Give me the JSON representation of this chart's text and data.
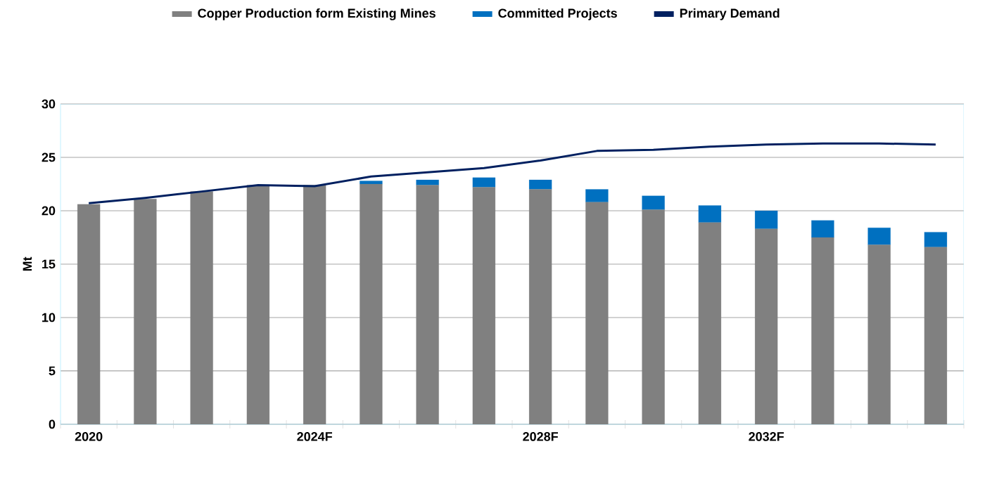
{
  "chart_data": {
    "type": "bar",
    "stacked": true,
    "ylabel": "Mt",
    "categories": [
      "2020",
      null,
      null,
      null,
      "2024F",
      null,
      null,
      null,
      "2028F",
      null,
      null,
      null,
      "2032F",
      null,
      null,
      null
    ],
    "series": [
      {
        "name": "Copper Production form Existing Mines",
        "color": "#808080",
        "values": [
          20.6,
          21.1,
          21.8,
          22.4,
          22.4,
          22.5,
          22.4,
          22.2,
          22.0,
          20.8,
          20.1,
          18.9,
          18.3,
          17.5,
          16.8,
          16.6
        ]
      },
      {
        "name": "Committed Projects",
        "color": "#0070c0",
        "values": [
          0,
          0,
          0,
          0,
          0,
          0.3,
          0.5,
          0.9,
          0.9,
          1.2,
          1.3,
          1.6,
          1.7,
          1.6,
          1.6,
          1.4
        ]
      },
      {
        "name": "Primary Demand",
        "type": "line",
        "color": "#002060",
        "values": [
          20.7,
          21.2,
          21.8,
          22.4,
          22.3,
          23.2,
          23.6,
          24.0,
          24.7,
          25.6,
          25.7,
          26.0,
          26.2,
          26.3,
          26.3,
          26.2
        ]
      }
    ],
    "ylim": [
      0,
      30
    ],
    "yticks": [
      0,
      5,
      10,
      15,
      20,
      25,
      30
    ],
    "grid": "y",
    "legend": "top"
  }
}
